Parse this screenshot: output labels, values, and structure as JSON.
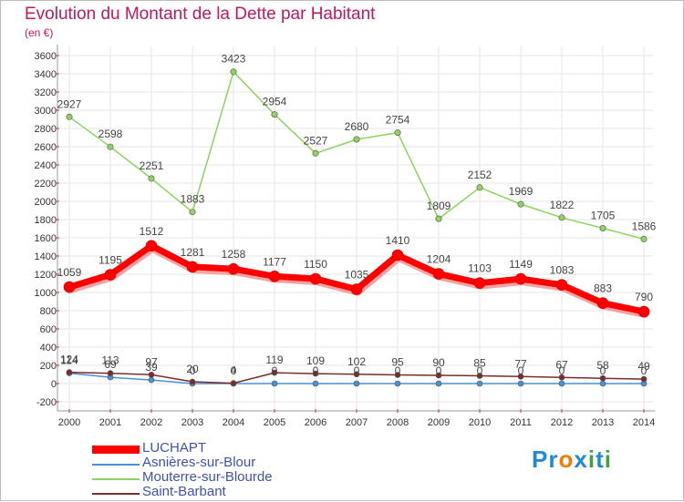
{
  "title": "Evolution du Montant de la Dette par Habitant",
  "subtitle": "(en €)",
  "brand": {
    "letters": [
      "P",
      "r",
      "o",
      "x",
      "i",
      "t",
      "i"
    ],
    "colors": [
      "#1e88e5",
      "#1e88e5",
      "#f57c00",
      "#1e88e5",
      "#43a047",
      "#1e88e5",
      "#43a047"
    ]
  },
  "chart_data": {
    "type": "line",
    "title": "Evolution du Montant de la Dette par Habitant",
    "ylabel": "(en €)",
    "x": [
      "2000",
      "2001",
      "2002",
      "2003",
      "2004",
      "2005",
      "2006",
      "2007",
      "2008",
      "2009",
      "2010",
      "2011",
      "2012",
      "2013",
      "2014"
    ],
    "ylim": [
      -200,
      3600
    ],
    "yticks": [
      -200,
      0,
      200,
      400,
      600,
      800,
      1000,
      1200,
      1400,
      1600,
      1800,
      2000,
      2200,
      2400,
      2600,
      2800,
      3000,
      3200,
      3400,
      3600
    ],
    "grid": true,
    "legend": "bottom-left",
    "series": [
      {
        "name": "LUCHAPT",
        "color": "#ff0000",
        "values": [
          1059,
          1195,
          1512,
          1281,
          1258,
          1177,
          1150,
          1035,
          1410,
          1204,
          1103,
          1149,
          1083,
          883,
          790
        ]
      },
      {
        "name": "Asnières-sur-Blour",
        "color": "#4a90d9",
        "values": [
          114,
          69,
          39,
          0,
          0,
          0,
          0,
          0,
          0,
          0,
          0,
          0,
          0,
          0,
          0
        ]
      },
      {
        "name": "Mouterre-sur-Blourde",
        "color": "#8dd35f",
        "values": [
          2927,
          2598,
          2251,
          1883,
          3423,
          2954,
          2527,
          2680,
          2754,
          1809,
          2152,
          1969,
          1822,
          1705,
          1586
        ]
      },
      {
        "name": "Saint-Barbant",
        "color": "#7b2c2c",
        "values": [
          124,
          113,
          97,
          20,
          4,
          119,
          109,
          102,
          95,
          90,
          85,
          77,
          67,
          58,
          49
        ]
      }
    ]
  }
}
